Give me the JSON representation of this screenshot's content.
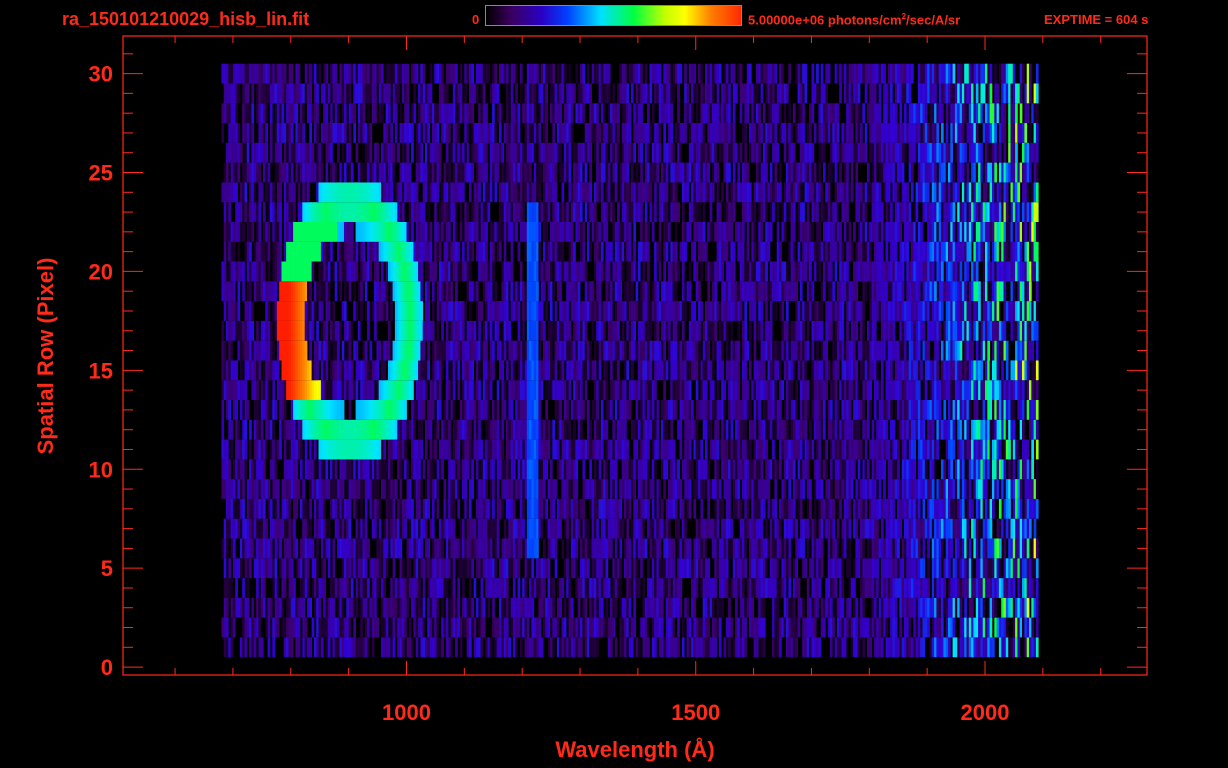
{
  "header": {
    "filename": "ra_150101210029_hisb_lin.fit",
    "colorbar_min": "0",
    "colorbar_max_prefix": "5.00000e+06 photons/cm",
    "colorbar_max_sup": "2",
    "colorbar_max_suffix": "/sec/A/sr",
    "exptime": "EXPTIME = 604 s"
  },
  "colors": {
    "text": "#ff2a1a",
    "axis": "#ff2a1a",
    "background": "#000000"
  },
  "chart_data": {
    "type": "heatmap",
    "title": "ra_150101210029_hisb_lin.fit",
    "xlabel": "Wavelength (Å)",
    "ylabel": "Spatial Row (Pixel)",
    "xlim": [
      510,
      2280
    ],
    "ylim": [
      -0.4,
      31.9
    ],
    "x_ticks": [
      1000,
      1500,
      2000
    ],
    "y_ticks": [
      0,
      5,
      10,
      15,
      20,
      25,
      30
    ],
    "colorbar": {
      "min": 0,
      "max": 5000000,
      "units": "photons/cm^2/sec/A/sr",
      "scale": "linear"
    },
    "data_extent": {
      "wavelength_range": [
        680,
        2090
      ],
      "rows": [
        1,
        30
      ]
    },
    "features": [
      {
        "name": "bright ring emission",
        "wavelength_range": [
          780,
          1040
        ],
        "rows": [
          10,
          24
        ],
        "peak_wavelength": 800,
        "peak_rows": [
          14,
          19
        ],
        "peak_level": 0.95
      },
      {
        "name": "narrow emission line",
        "wavelength": 1215,
        "rows": [
          6,
          23
        ],
        "level": 0.35
      },
      {
        "name": "long-wavelength continuum",
        "wavelength_range": [
          1900,
          2080
        ],
        "rows": [
          1,
          30
        ],
        "level": 0.55
      }
    ]
  }
}
